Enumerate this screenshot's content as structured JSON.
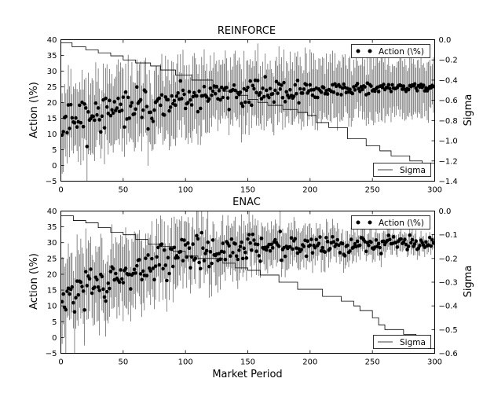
{
  "chart_data": [
    {
      "type": "scatter",
      "title": "REINFORCE",
      "xlabel": "",
      "ylabel": "Action (\\%)",
      "y2label": "Sigma",
      "xlim": [
        0,
        300
      ],
      "ylim": [
        -5,
        40
      ],
      "y2lim": [
        -1.4,
        0.0
      ],
      "xticks": [
        "0",
        "50",
        "100",
        "150",
        "200",
        "250",
        "300"
      ],
      "yticks": [
        "−5",
        "0",
        "5",
        "10",
        "15",
        "20",
        "25",
        "30",
        "35",
        "40"
      ],
      "y2ticks": [
        "−1.4",
        "−1.2",
        "−1.0",
        "−0.8",
        "−0.6",
        "−0.4",
        "−0.2",
        "0.0"
      ],
      "legend_action": "Action (\\%)",
      "legend_sigma": "Sigma",
      "legend_action_position": "top-right",
      "legend_sigma_position": "bottom-right",
      "action_trend": [
        [
          0,
          16
        ],
        [
          20,
          16
        ],
        [
          50,
          18
        ],
        [
          80,
          19
        ],
        [
          100,
          21
        ],
        [
          130,
          22.5
        ],
        [
          160,
          23.5
        ],
        [
          200,
          24
        ],
        [
          250,
          24.5
        ],
        [
          300,
          25
        ]
      ],
      "sigma_steps": [
        [
          0,
          -0.03
        ],
        [
          9,
          -0.07
        ],
        [
          20,
          -0.1
        ],
        [
          30,
          -0.13
        ],
        [
          40,
          -0.16
        ],
        [
          50,
          -0.2
        ],
        [
          60,
          -0.23
        ],
        [
          72,
          -0.26
        ],
        [
          80,
          -0.3
        ],
        [
          92,
          -0.35
        ],
        [
          105,
          -0.4
        ],
        [
          122,
          -0.48
        ],
        [
          132,
          -0.51
        ],
        [
          142,
          -0.55
        ],
        [
          150,
          -0.59
        ],
        [
          158,
          -0.62
        ],
        [
          166,
          -0.65
        ],
        [
          178,
          -0.69
        ],
        [
          190,
          -0.72
        ],
        [
          198,
          -0.75
        ],
        [
          205,
          -0.82
        ],
        [
          215,
          -0.87
        ],
        [
          230,
          -0.98
        ],
        [
          245,
          -1.05
        ],
        [
          256,
          -1.1
        ],
        [
          265,
          -1.15
        ],
        [
          280,
          -1.2
        ],
        [
          290,
          -1.22
        ],
        [
          300,
          -1.23
        ]
      ],
      "spread_start": 12,
      "spread_end": 9,
      "noise_start": 5,
      "noise_end": 0.8,
      "seed": 11
    },
    {
      "type": "scatter",
      "title": "ENAC",
      "xlabel": "Market Period",
      "ylabel": "Action (\\%)",
      "y2label": "Sigma",
      "xlim": [
        0,
        300
      ],
      "ylim": [
        -5,
        40
      ],
      "y2lim": [
        -0.6,
        0.0
      ],
      "xticks": [
        "0",
        "50",
        "100",
        "150",
        "200",
        "250",
        "300"
      ],
      "yticks": [
        "−5",
        "0",
        "5",
        "10",
        "15",
        "20",
        "25",
        "30",
        "35",
        "40"
      ],
      "y2ticks": [
        "−0.6",
        "−0.5",
        "−0.4",
        "−0.3",
        "−0.2",
        "−0.1",
        "0.0"
      ],
      "legend_action": "Action (\\%)",
      "legend_sigma": "Sigma",
      "legend_action_position": "top-right",
      "legend_sigma_position": "bottom-right",
      "action_trend": [
        [
          0,
          13
        ],
        [
          30,
          17
        ],
        [
          60,
          22
        ],
        [
          90,
          26
        ],
        [
          120,
          27
        ],
        [
          150,
          28
        ],
        [
          200,
          29
        ],
        [
          250,
          29.5
        ],
        [
          300,
          30
        ]
      ],
      "sigma_steps": [
        [
          0,
          -0.02
        ],
        [
          10,
          -0.04
        ],
        [
          20,
          -0.05
        ],
        [
          30,
          -0.07
        ],
        [
          40,
          -0.09
        ],
        [
          50,
          -0.1
        ],
        [
          60,
          -0.12
        ],
        [
          70,
          -0.14
        ],
        [
          80,
          -0.15
        ],
        [
          90,
          -0.17
        ],
        [
          100,
          -0.19
        ],
        [
          110,
          -0.2
        ],
        [
          130,
          -0.22
        ],
        [
          140,
          -0.24
        ],
        [
          150,
          -0.25
        ],
        [
          160,
          -0.27
        ],
        [
          175,
          -0.3
        ],
        [
          190,
          -0.33
        ],
        [
          210,
          -0.36
        ],
        [
          225,
          -0.38
        ],
        [
          235,
          -0.4
        ],
        [
          240,
          -0.42
        ],
        [
          250,
          -0.45
        ],
        [
          255,
          -0.48
        ],
        [
          260,
          -0.5
        ],
        [
          275,
          -0.52
        ],
        [
          285,
          -0.55
        ],
        [
          295,
          -0.58
        ],
        [
          300,
          -0.6
        ]
      ],
      "spread_start": 13,
      "spread_end": 2.5,
      "noise_start": 5,
      "noise_end": 1.2,
      "seed": 23
    }
  ]
}
